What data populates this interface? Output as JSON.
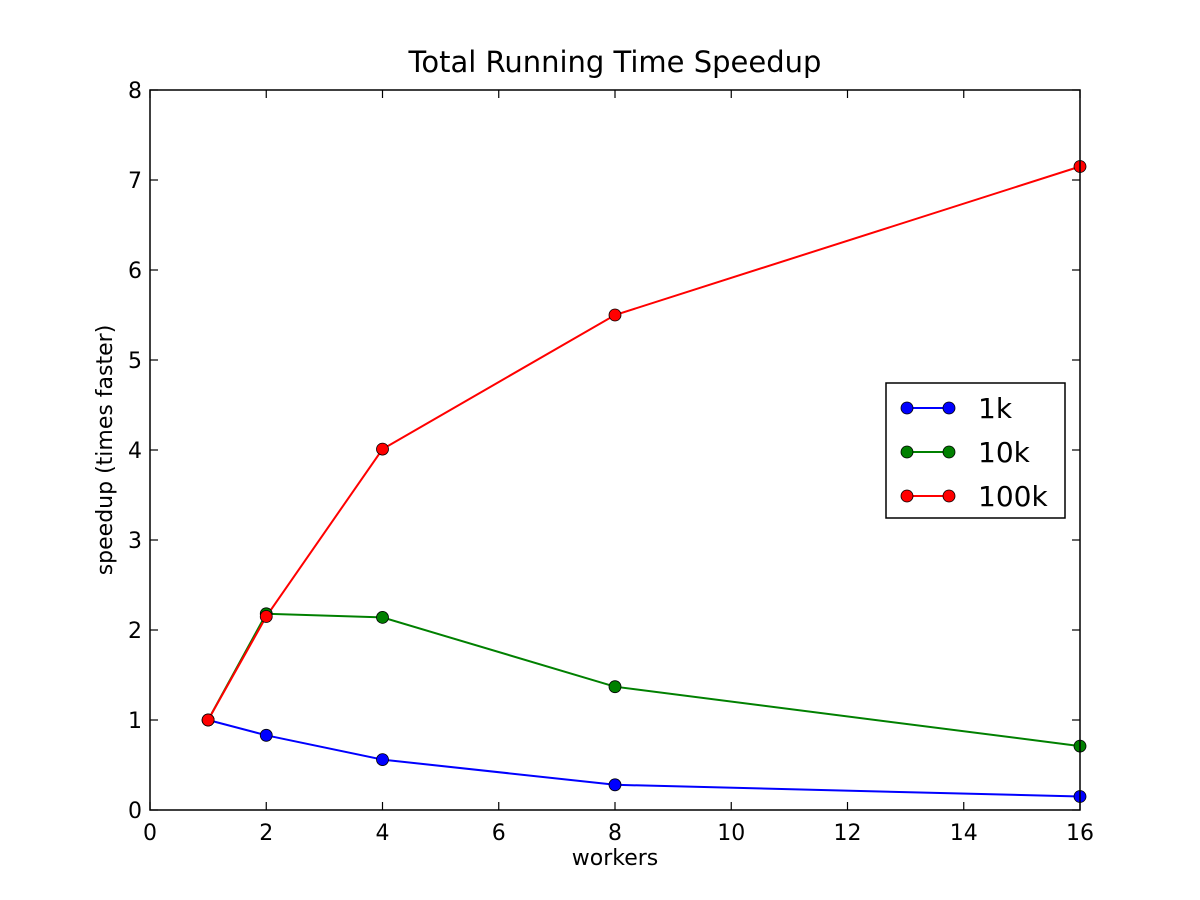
{
  "chart_data": {
    "type": "line",
    "title": "Total Running Time Speedup",
    "xlabel": "workers",
    "ylabel": "speedup (times faster)",
    "xlim": [
      0,
      16
    ],
    "ylim": [
      0,
      8
    ],
    "x_ticks": [
      "0",
      "2",
      "4",
      "6",
      "8",
      "10",
      "12",
      "14",
      "16"
    ],
    "y_ticks": [
      "0",
      "1",
      "2",
      "3",
      "4",
      "5",
      "6",
      "7",
      "8"
    ],
    "grid": false,
    "legend_position": "right",
    "x": [
      1,
      2,
      4,
      8,
      16
    ],
    "series": [
      {
        "name": "1k",
        "color": "#0000ff",
        "values": [
          1.0,
          0.83,
          0.56,
          0.28,
          0.15
        ]
      },
      {
        "name": "10k",
        "color": "#008000",
        "values": [
          1.0,
          2.18,
          2.14,
          1.37,
          0.71
        ]
      },
      {
        "name": "100k",
        "color": "#ff0000",
        "values": [
          1.0,
          2.15,
          4.01,
          5.5,
          7.15
        ]
      }
    ]
  }
}
